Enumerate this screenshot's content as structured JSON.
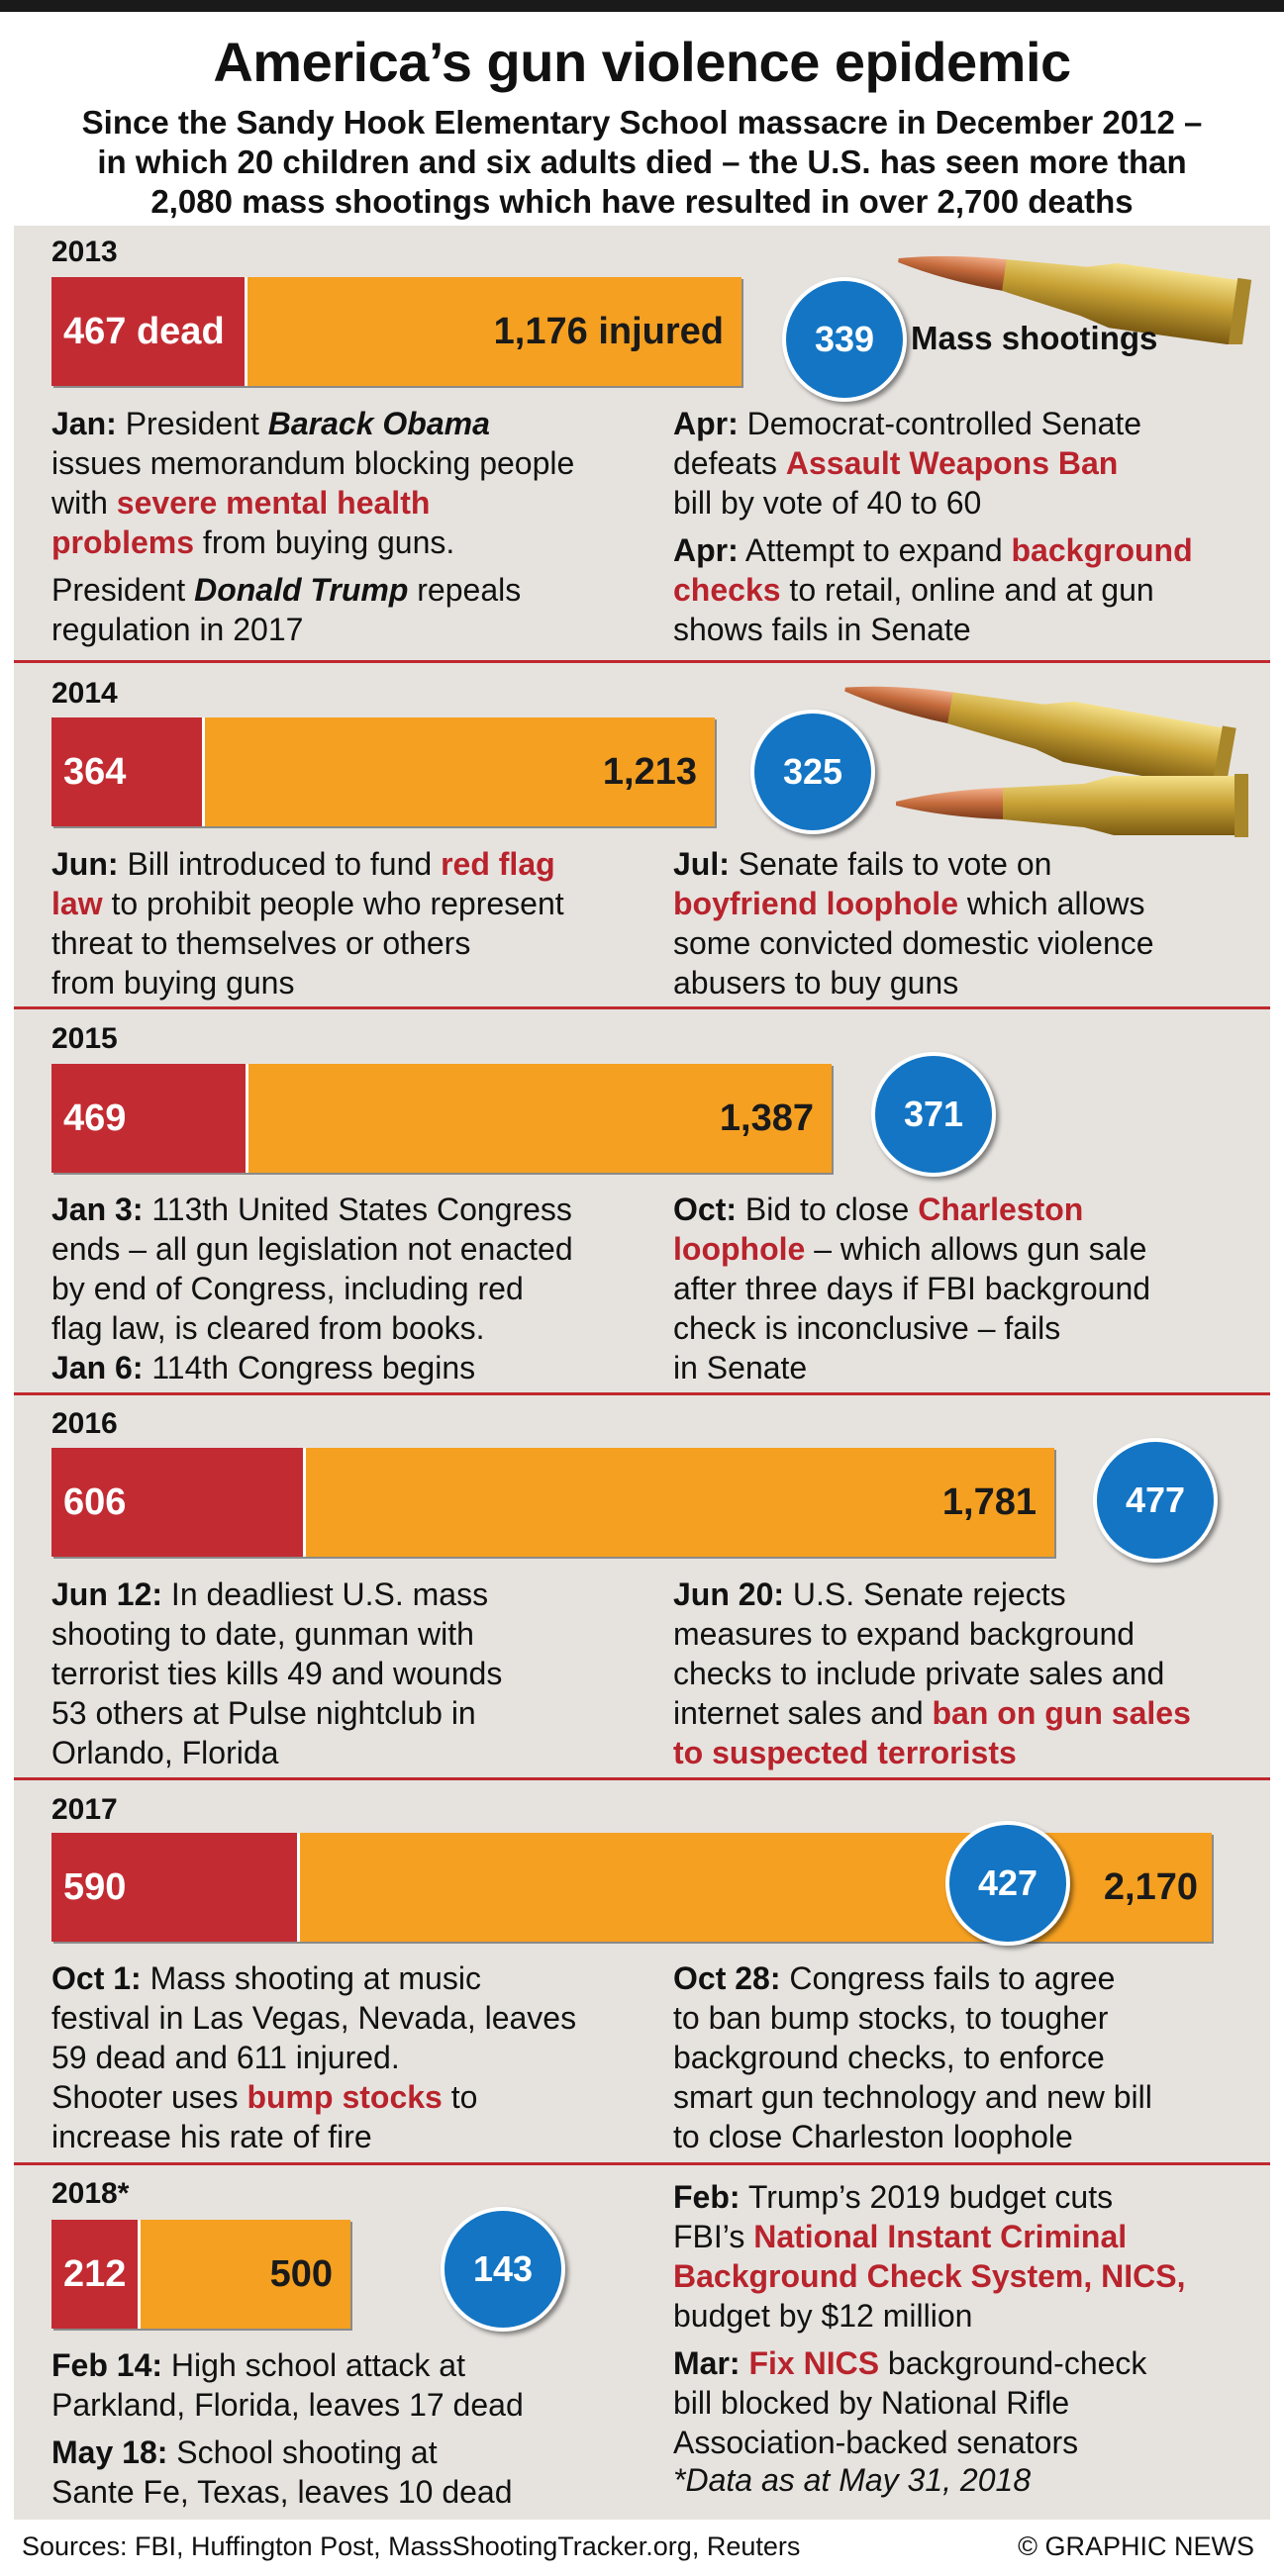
{
  "title": "America’s gun violence epidemic",
  "subtitle": [
    "Since the Sandy Hook Elementary School massacre in December 2012 –",
    "in which 20 children and six adults died – the U.S. has seen more than",
    "2,080 mass shootings which have resulted in over 2,700 deaths"
  ],
  "mass_shootings_label": "Mass shootings",
  "chart_data": {
    "type": "bar",
    "orientation": "horizontal",
    "stacked": true,
    "categories": [
      "2013",
      "2014",
      "2015",
      "2016",
      "2017",
      "2018*"
    ],
    "series": [
      {
        "name": "dead",
        "values": [
          467,
          364,
          469,
          606,
          590,
          212
        ],
        "color": "#c32b32"
      },
      {
        "name": "injured",
        "values": [
          1176,
          1213,
          1387,
          1781,
          2170,
          500
        ],
        "color": "#f5a021"
      }
    ],
    "mass_shootings": {
      "name": "Mass shootings",
      "values": [
        339,
        325,
        371,
        477,
        427,
        143
      ],
      "color": "#1375c4"
    },
    "labels": {
      "dead": [
        "467 dead",
        "364",
        "469",
        "606",
        "590",
        "212"
      ],
      "injured": [
        "1,176 injured",
        "1,213",
        "1,387",
        "1,781",
        "2,170",
        "500"
      ],
      "mass_shootings": [
        "339",
        "325",
        "371",
        "477",
        "427",
        "143"
      ]
    }
  },
  "years": [
    {
      "left": [
        [
          {
            "t": "Jan:",
            "s": "b"
          },
          {
            "t": " President "
          },
          {
            "t": "Barack Obama",
            "s": "bi"
          }
        ],
        [
          {
            "t": "issues memorandum blocking people"
          }
        ],
        [
          {
            "t": "with "
          },
          {
            "t": "severe mental health",
            "s": "hl"
          }
        ],
        [
          {
            "t": "problems",
            "s": "hl"
          },
          {
            "t": " from buying guns."
          }
        ],
        [
          {
            "t": "President "
          },
          {
            "t": "Donald Trump",
            "s": "bi"
          },
          {
            "t": " repeals"
          }
        ],
        [
          {
            "t": "regulation in 2017"
          }
        ]
      ],
      "right": [
        [
          {
            "t": "Apr:",
            "s": "b"
          },
          {
            "t": " Democrat-controlled Senate"
          }
        ],
        [
          {
            "t": "defeats "
          },
          {
            "t": "Assault Weapons Ban",
            "s": "hl"
          }
        ],
        [
          {
            "t": "bill by vote of 40 to 60"
          }
        ],
        [
          {
            "t": "Apr:",
            "s": "b"
          },
          {
            "t": " Attempt to expand "
          },
          {
            "t": "background",
            "s": "hl"
          }
        ],
        [
          {
            "t": "checks",
            "s": "hl"
          },
          {
            "t": " to retail, online and at gun"
          }
        ],
        [
          {
            "t": "shows fails in Senate"
          }
        ]
      ]
    },
    {
      "left": [
        [
          {
            "t": "Jun:",
            "s": "b"
          },
          {
            "t": " Bill introduced to fund "
          },
          {
            "t": "red flag",
            "s": "hl"
          }
        ],
        [
          {
            "t": "law",
            "s": "hl"
          },
          {
            "t": " to prohibit people who represent"
          }
        ],
        [
          {
            "t": "threat to themselves or others"
          }
        ],
        [
          {
            "t": "from buying guns"
          }
        ]
      ],
      "right": [
        [
          {
            "t": "Jul:",
            "s": "b"
          },
          {
            "t": " Senate fails to vote on"
          }
        ],
        [
          {
            "t": "boyfriend loophole",
            "s": "hl"
          },
          {
            "t": " which allows"
          }
        ],
        [
          {
            "t": "some convicted domestic violence"
          }
        ],
        [
          {
            "t": "abusers to buy guns"
          }
        ]
      ]
    },
    {
      "left": [
        [
          {
            "t": "Jan 3:",
            "s": "b"
          },
          {
            "t": " 113th United States Congress"
          }
        ],
        [
          {
            "t": "ends – all gun legislation not enacted"
          }
        ],
        [
          {
            "t": "by end of Congress, including red"
          }
        ],
        [
          {
            "t": "flag law, is cleared from books."
          }
        ],
        [
          {
            "t": "Jan 6:",
            "s": "b"
          },
          {
            "t": " 114th Congress begins"
          }
        ]
      ],
      "right": [
        [
          {
            "t": "Oct:",
            "s": "b"
          },
          {
            "t": " Bid to close "
          },
          {
            "t": "Charleston",
            "s": "hl"
          }
        ],
        [
          {
            "t": "loophole",
            "s": "hl"
          },
          {
            "t": " – which allows gun sale"
          }
        ],
        [
          {
            "t": "after three days if FBI background"
          }
        ],
        [
          {
            "t": "check is inconclusive – fails"
          }
        ],
        [
          {
            "t": "in Senate"
          }
        ]
      ]
    },
    {
      "left": [
        [
          {
            "t": "Jun 12:",
            "s": "b"
          },
          {
            "t": " In deadliest U.S. mass"
          }
        ],
        [
          {
            "t": "shooting to date, gunman with"
          }
        ],
        [
          {
            "t": "terrorist ties kills 49 and wounds"
          }
        ],
        [
          {
            "t": "53 others at Pulse nightclub in"
          }
        ],
        [
          {
            "t": "Orlando, Florida"
          }
        ]
      ],
      "right": [
        [
          {
            "t": "Jun 20:",
            "s": "b"
          },
          {
            "t": " U.S. Senate rejects"
          }
        ],
        [
          {
            "t": "measures to expand background"
          }
        ],
        [
          {
            "t": "checks to include private sales and"
          }
        ],
        [
          {
            "t": "internet sales and "
          },
          {
            "t": "ban on gun sales",
            "s": "hl"
          }
        ],
        [
          {
            "t": "to suspected terrorists",
            "s": "hl"
          }
        ]
      ]
    },
    {
      "left": [
        [
          {
            "t": "Oct 1:",
            "s": "b"
          },
          {
            "t": " Mass shooting at music"
          }
        ],
        [
          {
            "t": "festival in Las Vegas, Nevada, leaves"
          }
        ],
        [
          {
            "t": "59 dead and 611 injured."
          }
        ],
        [
          {
            "t": "Shooter uses "
          },
          {
            "t": "bump stocks",
            "s": "hl"
          },
          {
            "t": " to"
          }
        ],
        [
          {
            "t": "increase his rate of fire"
          }
        ]
      ],
      "right": [
        [
          {
            "t": "Oct 28:",
            "s": "b"
          },
          {
            "t": " Congress fails to agree"
          }
        ],
        [
          {
            "t": "to ban bump stocks, to tougher"
          }
        ],
        [
          {
            "t": "background checks, to enforce"
          }
        ],
        [
          {
            "t": "smart gun technology and new bill"
          }
        ],
        [
          {
            "t": "to close Charleston loophole"
          }
        ]
      ]
    },
    {
      "left": [
        [
          {
            "t": "Feb 14:",
            "s": "b"
          },
          {
            "t": " High school attack at"
          }
        ],
        [
          {
            "t": "Parkland, Florida, leaves 17 dead"
          }
        ],
        [
          {
            "t": "May 18:",
            "s": "b"
          },
          {
            "t": " School shooting at"
          }
        ],
        [
          {
            "t": "Sante Fe, Texas,  leaves 10 dead"
          }
        ]
      ],
      "right": [
        [
          {
            "t": "Feb:",
            "s": "b"
          },
          {
            "t": " Trump’s 2019 budget cuts"
          }
        ],
        [
          {
            "t": "FBI’s "
          },
          {
            "t": "National Instant Criminal",
            "s": "hl"
          }
        ],
        [
          {
            "t": "Background Check System, NICS,",
            "s": "hl"
          }
        ],
        [
          {
            "t": "budget by $12 million"
          }
        ],
        [
          {
            "t": "Mar:",
            "s": "b"
          },
          {
            "t": " "
          },
          {
            "t": "Fix NICS",
            "s": "hl"
          },
          {
            "t": " background-check"
          }
        ],
        [
          {
            "t": "bill blocked by National Rifle"
          }
        ],
        [
          {
            "t": "Association-backed senators"
          }
        ]
      ]
    }
  ],
  "footnote": "*Data as at May 31, 2018",
  "sources": "Sources: FBI, Huffington Post, MassShootingTracker.org, Reuters",
  "copyright": "© GRAPHIC NEWS",
  "colors": {
    "dead": "#c32b32",
    "injured": "#f5a021",
    "circle": "#1375c4",
    "highlight": "#b8232c",
    "separator": "#c0282f",
    "panel": "#e6e3df"
  }
}
